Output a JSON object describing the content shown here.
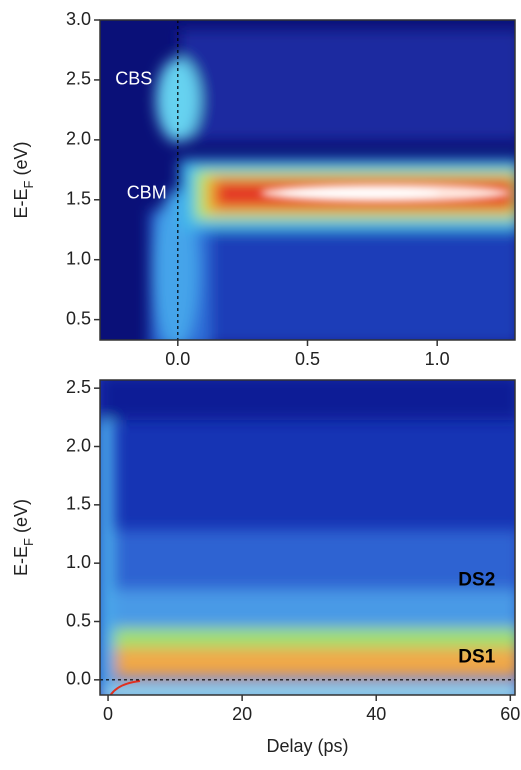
{
  "chart_data": [
    {
      "type": "heatmap",
      "ylabel": "E-E",
      "ylabel_sub": "F",
      "ylabel_unit": " (eV)",
      "xlim": [
        -0.3,
        1.3
      ],
      "ylim": [
        0.33,
        3.0
      ],
      "xticks": [
        {
          "value": 0,
          "label": "0.0"
        },
        0.5,
        {
          "value": 1,
          "label": "1.0"
        }
      ],
      "yticks": [
        0.5,
        {
          "value": 1,
          "label": "1.0"
        },
        1.5,
        {
          "value": 2,
          "label": "2.0"
        },
        2.5,
        {
          "value": 3,
          "label": "3.0"
        }
      ],
      "vline": 0,
      "annotations": [
        {
          "text": "CBS",
          "x": -0.17,
          "y": 2.5,
          "color": "#ffffff"
        },
        {
          "text": "CBM",
          "x": -0.12,
          "y": 1.55,
          "color": "#ffffff"
        }
      ]
    },
    {
      "type": "heatmap",
      "xlabel": "Delay (ps)",
      "ylabel": "E-E",
      "ylabel_sub": "F",
      "ylabel_unit": " (eV)",
      "xlim": [
        -1.2,
        60.7
      ],
      "ylim": [
        -0.13,
        2.57
      ],
      "xticks": [
        0,
        20,
        40,
        60
      ],
      "yticks": [
        {
          "value": 0,
          "label": "0.0"
        },
        0.5,
        {
          "value": 1,
          "label": "1.0"
        },
        1.5,
        {
          "value": 2,
          "label": "2.0"
        },
        2.5
      ],
      "hline": 0,
      "annotations": [
        {
          "text": "DS2",
          "x": 55,
          "y": 0.85,
          "color": "#000000"
        },
        {
          "text": "DS1",
          "x": 55,
          "y": 0.19,
          "color": "#000000"
        }
      ]
    }
  ]
}
